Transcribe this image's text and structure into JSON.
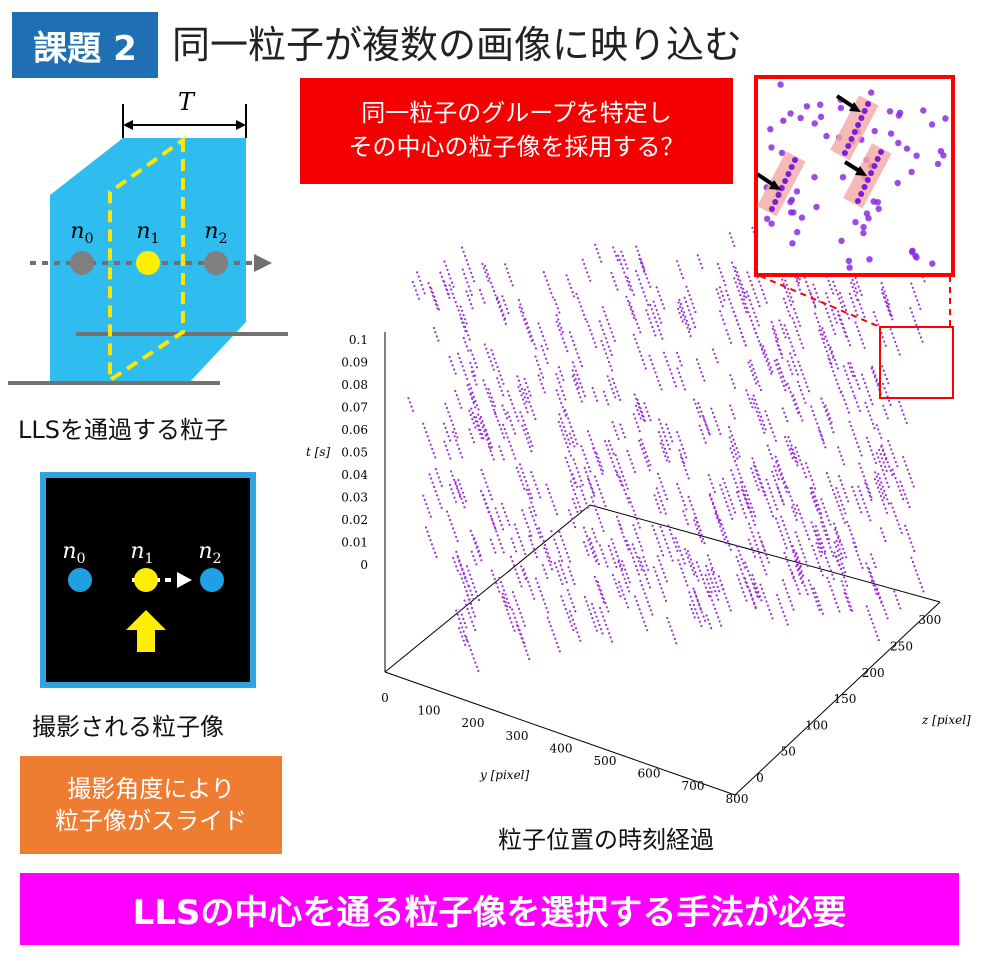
{
  "badge": "課題 2",
  "title": "同一粒子が複数の画像に映り込む",
  "lls_diagram": {
    "width_label": "T",
    "particle_labels": [
      "n0",
      "n1",
      "n2"
    ],
    "caption": "LLSを通過する粒子",
    "colors": {
      "sheet": "#2eb8e6",
      "center_particle": "#ffee00",
      "side_particle": "#7f7f7f",
      "plane": "#ffe600"
    }
  },
  "camera_view": {
    "particle_labels": [
      "n0",
      "n1",
      "n2"
    ],
    "caption": "撮影される粒子像",
    "colors": {
      "frame": "#2ea6dd",
      "background": "#000000",
      "particle": "#1fa0e0",
      "center_particle": "#ffee00"
    }
  },
  "red_callout": {
    "line1": "同一粒子のグループを特定し",
    "line2": "その中心の粒子像を採用する？"
  },
  "orange_callout": {
    "line1": "撮影角度により",
    "line2": "粒子像がスライド"
  },
  "footer": "LLSの中心を通る粒子像を選択する手法が必要",
  "chart_caption": "粒子位置の時刻経過",
  "chart_data": {
    "type": "scatter3d",
    "t_axis": {
      "label": "t [s]",
      "ticks": [
        "0.1",
        "0.09",
        "0.08",
        "0.07",
        "0.06",
        "0.05",
        "0.04",
        "0.03",
        "0.02",
        "0.01",
        "0"
      ],
      "range": [
        0,
        0.1
      ]
    },
    "y_axis": {
      "label": "y [pixel]",
      "ticks": [
        "0",
        "100",
        "200",
        "300",
        "400",
        "500",
        "600",
        "700",
        "800"
      ],
      "range": [
        0,
        800
      ]
    },
    "z_axis": {
      "label": "z [pixel]",
      "ticks": [
        "0",
        "50",
        "100",
        "150",
        "200",
        "250",
        "300"
      ],
      "range": [
        0,
        300
      ]
    },
    "point_color": "#9b2fd4",
    "highlight_color": "#ff0000"
  }
}
